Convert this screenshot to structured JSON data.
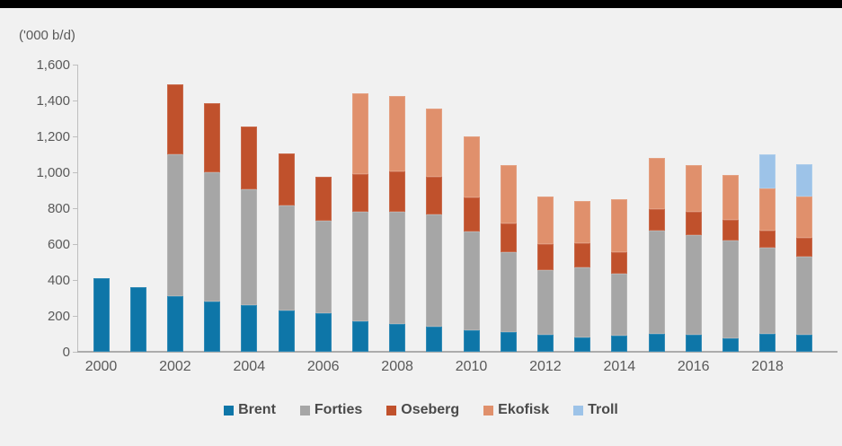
{
  "header": {
    "unit_label": "('000 b/d)"
  },
  "chart_data": {
    "type": "bar",
    "subtype": "stacked-column",
    "title": "",
    "ylabel": "('000 b/d)",
    "xlabel": "",
    "ylim": [
      0,
      1600
    ],
    "ytick_step": 200,
    "ytick_labels": [
      "0",
      "200",
      "400",
      "600",
      "800",
      "1,000",
      "1,200",
      "1,400",
      "1,600"
    ],
    "grid": false,
    "legend_position": "bottom",
    "categories": [
      2000,
      2001,
      2002,
      2003,
      2004,
      2005,
      2006,
      2007,
      2008,
      2009,
      2010,
      2011,
      2012,
      2013,
      2014,
      2015,
      2016,
      2017,
      2018,
      2019
    ],
    "xtick_labels": [
      "2000",
      "2002",
      "2004",
      "2006",
      "2008",
      "2010",
      "2012",
      "2014",
      "2016",
      "2018"
    ],
    "series": [
      {
        "name": "Brent",
        "color": "#0e76a8",
        "values": [
          410,
          360,
          310,
          280,
          260,
          230,
          215,
          170,
          155,
          140,
          120,
          110,
          95,
          80,
          90,
          100,
          95,
          75,
          100,
          95
        ]
      },
      {
        "name": "Forties",
        "color": "#a6a6a6",
        "values": [
          0,
          0,
          790,
          720,
          645,
          585,
          515,
          610,
          625,
          625,
          550,
          445,
          360,
          390,
          345,
          575,
          555,
          545,
          480,
          435
        ]
      },
      {
        "name": "Oseberg",
        "color": "#c0512c",
        "values": [
          0,
          0,
          390,
          385,
          350,
          290,
          245,
          210,
          225,
          210,
          190,
          160,
          145,
          135,
          120,
          120,
          130,
          115,
          95,
          105
        ]
      },
      {
        "name": "Ekofisk",
        "color": "#e0906c",
        "values": [
          0,
          0,
          0,
          0,
          0,
          0,
          0,
          450,
          420,
          380,
          340,
          325,
          265,
          235,
          295,
          285,
          260,
          250,
          235,
          230
        ]
      },
      {
        "name": "Troll",
        "color": "#9dc3e8",
        "values": [
          0,
          0,
          0,
          0,
          0,
          0,
          0,
          0,
          0,
          0,
          0,
          0,
          0,
          0,
          0,
          0,
          0,
          0,
          190,
          180
        ]
      }
    ]
  }
}
